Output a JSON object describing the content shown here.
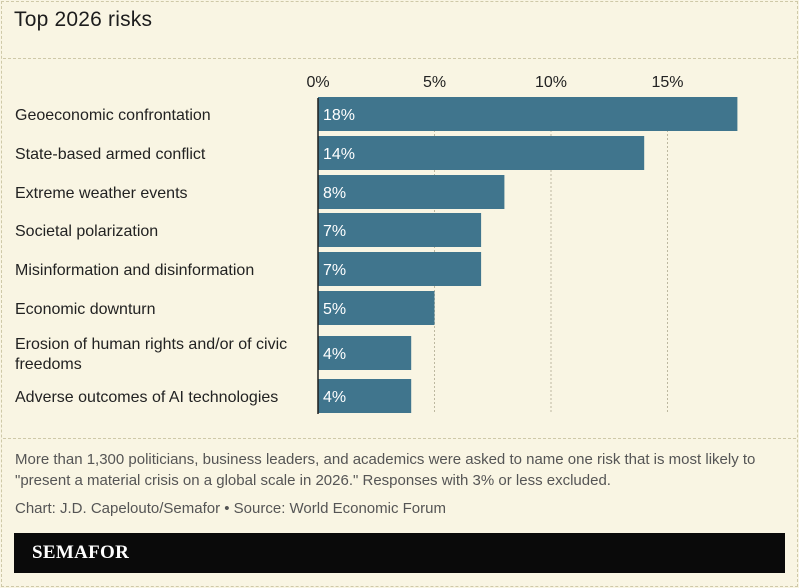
{
  "title": "Top 2026 risks",
  "chart_data": {
    "type": "bar",
    "orientation": "horizontal",
    "categories": [
      [
        "Geoeconomic confrontation"
      ],
      [
        "State-based armed conflict"
      ],
      [
        "Extreme weather events"
      ],
      [
        "Societal polarization"
      ],
      [
        "Misinformation and disinformation"
      ],
      [
        "Economic downturn"
      ],
      [
        "Erosion of human rights and/or of civic",
        "freedoms"
      ],
      [
        "Adverse outcomes of AI technologies"
      ]
    ],
    "values": [
      18,
      14,
      8,
      7,
      7,
      5,
      4,
      4
    ],
    "value_labels": [
      "18%",
      "14%",
      "8%",
      "7%",
      "7%",
      "5%",
      "4%",
      "4%"
    ],
    "x_ticks": [
      0,
      5,
      10,
      15
    ],
    "x_tick_labels": [
      "0%",
      "5%",
      "10%",
      "15%"
    ],
    "xlim": [
      0,
      18.5
    ],
    "grid": true,
    "bar_color": "#40758d"
  },
  "note": "More than 1,300 politicians, business leaders, and academics were asked to name one risk that is most likely to \"present a material crisis on a global scale in 2026.\" Responses with 3% or less excluded.",
  "credit": "Chart: J.D. Capelouto/Semafor • Source: World Economic Forum",
  "brand": "SEMAFOR",
  "colors": {
    "background": "#f9f5e3",
    "bar": "#40758d",
    "grid": "#bdb8a0",
    "footer": "#0a0a0a"
  }
}
